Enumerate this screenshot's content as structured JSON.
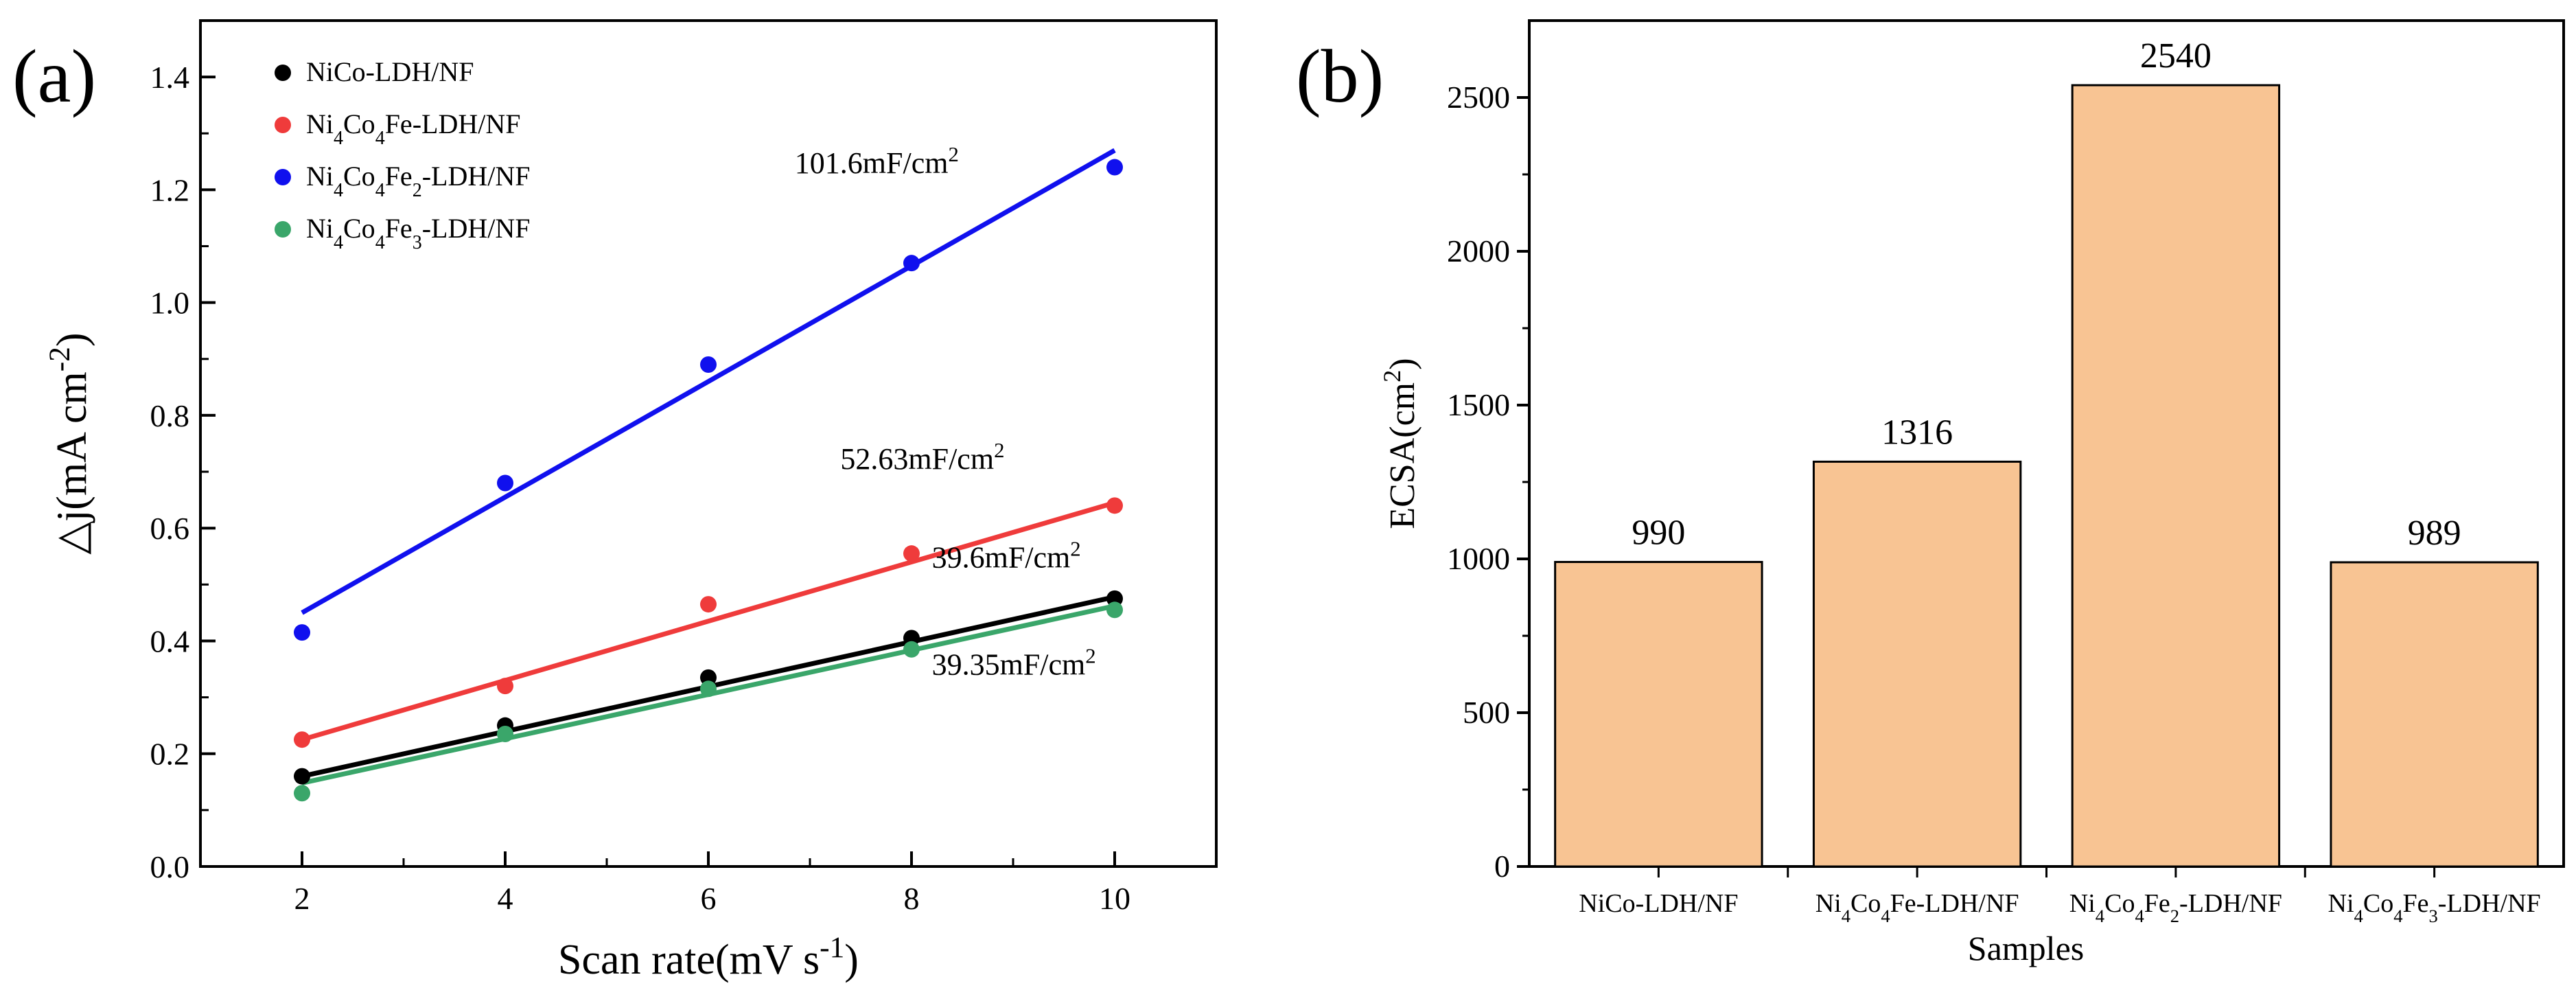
{
  "panels": {
    "a": {
      "label": "(a)"
    },
    "b": {
      "label": "(b)"
    }
  },
  "chart_data": [
    {
      "type": "scatter",
      "panel": "a",
      "title": "",
      "xlabel": "Scan rate(mV s",
      "xlabel_sup": "-1",
      "xlabel_end": ")",
      "ylabel": "△j(mA cm",
      "ylabel_sup": "-2",
      "ylabel_end": ")",
      "xlim": [
        1,
        11
      ],
      "ylim": [
        0,
        1.5
      ],
      "xticks": [
        2,
        4,
        6,
        8,
        10
      ],
      "yticks": [
        0.0,
        0.2,
        0.4,
        0.6,
        0.8,
        1.0,
        1.2,
        1.4
      ],
      "ytick_labels": [
        "0.0",
        "0.2",
        "0.4",
        "0.6",
        "0.8",
        "1.0",
        "1.2",
        "1.4"
      ],
      "legend_position": "top-left",
      "series": [
        {
          "name": "NiCo-LDH/NF",
          "legend": {
            "pre": "NiCo-LDH/NF"
          },
          "color": "#000000",
          "x": [
            2,
            4,
            6,
            8,
            10
          ],
          "y": [
            0.16,
            0.25,
            0.335,
            0.405,
            0.475
          ],
          "fit": {
            "y_start": 0.16,
            "y_end": 0.478
          },
          "annotation": {
            "text": "39.6mF/cm",
            "sup": "2",
            "x": 8.2,
            "y": 0.53
          }
        },
        {
          "name": "Ni4Co4Fe-LDH/NF",
          "legend": {
            "pre": "Ni",
            "s1": "4",
            "mid": "Co",
            "s2": "4",
            "post": "Fe-LDH/NF"
          },
          "color": "#ef3b3b",
          "x": [
            2,
            4,
            6,
            8,
            10
          ],
          "y": [
            0.225,
            0.32,
            0.465,
            0.555,
            0.64
          ],
          "fit": {
            "y_start": 0.225,
            "y_end": 0.645
          },
          "annotation": {
            "text": "52.63mF/cm",
            "sup": "2",
            "x": 7.3,
            "y": 0.705
          }
        },
        {
          "name": "Ni4Co4Fe2-LDH/NF",
          "legend": {
            "pre": "Ni",
            "s1": "4",
            "mid": "Co",
            "s2": "4",
            "post": "Fe",
            "s3": "2",
            "end": "-LDH/NF"
          },
          "color": "#1010ee",
          "x": [
            2,
            4,
            6,
            8,
            10
          ],
          "y": [
            0.415,
            0.68,
            0.89,
            1.07,
            1.24
          ],
          "fit": {
            "y_start": 0.45,
            "y_end": 1.27
          },
          "annotation": {
            "text": "101.6mF/cm",
            "sup": "2",
            "x": 6.85,
            "y": 1.23
          }
        },
        {
          "name": "Ni4Co4Fe3-LDH/NF",
          "legend": {
            "pre": "Ni",
            "s1": "4",
            "mid": "Co",
            "s2": "4",
            "post": "Fe",
            "s3": "3",
            "end": "-LDH/NF"
          },
          "color": "#3aa66a",
          "x": [
            2,
            4,
            6,
            8,
            10
          ],
          "y": [
            0.13,
            0.235,
            0.315,
            0.385,
            0.455
          ],
          "fit": {
            "y_start": 0.148,
            "y_end": 0.462
          },
          "annotation": {
            "text": "39.35mF/cm",
            "sup": "2",
            "x": 8.2,
            "y": 0.34
          }
        }
      ]
    },
    {
      "type": "bar",
      "panel": "b",
      "title": "",
      "xlabel": "Samples",
      "ylabel": "ECSA(cm",
      "ylabel_sup": "2",
      "ylabel_end": ")",
      "ylim": [
        0,
        2750
      ],
      "yticks": [
        0,
        500,
        1000,
        1500,
        2000,
        2500
      ],
      "bar_color": "#f8c493",
      "categories": [
        {
          "pre": "NiCo-LDH/NF"
        },
        {
          "pre": "Ni",
          "s1": "4",
          "mid": "Co",
          "s2": "4",
          "post": "Fe-LDH/NF"
        },
        {
          "pre": "Ni",
          "s1": "4",
          "mid": "Co",
          "s2": "4",
          "post": "Fe",
          "s3": "2",
          "end": "-LDH/NF"
        },
        {
          "pre": "Ni",
          "s1": "4",
          "mid": "Co",
          "s2": "4",
          "post": "Fe",
          "s3": "3",
          "end": "-LDH/NF"
        }
      ],
      "values": [
        990,
        1316,
        2540,
        989
      ],
      "data_labels": [
        "990",
        "1316",
        "2540",
        "989"
      ]
    }
  ]
}
